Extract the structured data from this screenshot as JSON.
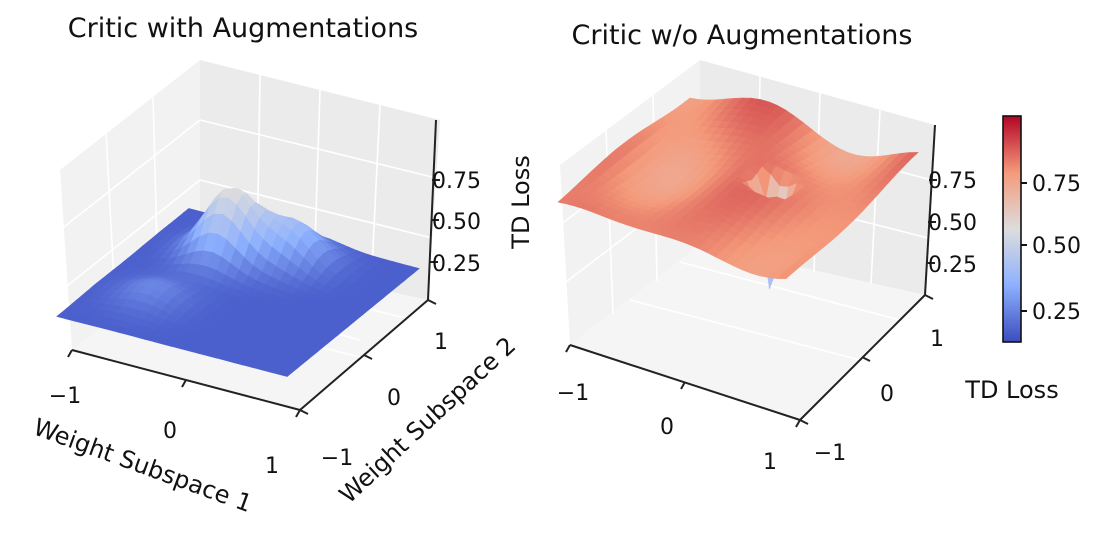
{
  "chart_data": [
    {
      "type": "surface",
      "title": "Critic with Augmentations",
      "xlabel": "Weight Subspace 1",
      "ylabel": "Weight Subspace 2",
      "zlabel": "TD Loss",
      "x_ticks": [
        "−1",
        "0",
        "1"
      ],
      "y_ticks": [
        "−1",
        "0",
        "1"
      ],
      "z_ticks": [
        "0.25",
        "0.50",
        "0.75"
      ],
      "xlim": [
        -1.2,
        1.2
      ],
      "ylim": [
        -1.2,
        1.2
      ],
      "zlim": [
        0,
        1.0
      ],
      "colormap": "coolwarm",
      "peaks": [
        {
          "x": -0.4,
          "y": 0.55,
          "height": 0.45
        },
        {
          "x": 0.15,
          "y": 0.75,
          "height": 0.25
        },
        {
          "x": -0.6,
          "y": -0.5,
          "height": 0.1
        }
      ],
      "base_level": 0.05
    },
    {
      "type": "surface",
      "title": "Critic w/o Augmentations",
      "xlabel": "",
      "ylabel": "",
      "zlabel": "",
      "x_ticks": [
        "−1",
        "0",
        "1"
      ],
      "y_ticks": [
        "−1",
        "0",
        "1"
      ],
      "z_ticks": [
        "0.25",
        "0.50",
        "0.75"
      ],
      "xlim": [
        -1.2,
        1.2
      ],
      "ylim": [
        -1.2,
        1.2
      ],
      "zlim": [
        0,
        1.0
      ],
      "colormap": "coolwarm",
      "base_level": 0.78,
      "min": {
        "x": 0.3,
        "y": 0.1,
        "value": 0.02
      },
      "colorbar": {
        "label": "TD Loss",
        "ticks": [
          "0.25",
          "0.50",
          "0.75"
        ],
        "range": [
          0.02,
          0.98
        ]
      }
    }
  ]
}
